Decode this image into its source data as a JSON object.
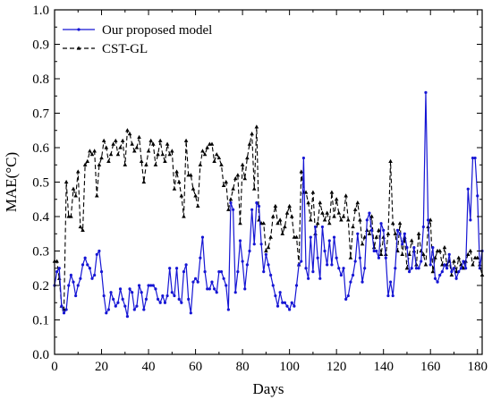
{
  "chart_data": {
    "type": "line",
    "xlabel": "Days",
    "ylabel": "MAE(°C)",
    "xlim": [
      0,
      182
    ],
    "ylim": [
      0.0,
      1.0
    ],
    "xticks": [
      0,
      20,
      40,
      60,
      80,
      100,
      120,
      140,
      160,
      180
    ],
    "yticks": [
      0.0,
      0.1,
      0.2,
      0.3,
      0.4,
      0.5,
      0.6,
      0.7,
      0.8,
      0.9,
      1.0
    ],
    "xtick_labels": [
      "0",
      "20",
      "40",
      "60",
      "80",
      "100",
      "120",
      "140",
      "160",
      "180"
    ],
    "ytick_labels": [
      "0.0",
      "0.1",
      "0.2",
      "0.3",
      "0.4",
      "0.5",
      "0.6",
      "0.7",
      "0.8",
      "0.9",
      "1.0"
    ],
    "grid": false,
    "legend_position": "top-left",
    "series": [
      {
        "name": "Our proposed model",
        "color": "#1515d4",
        "style": "solid",
        "marker": "dot",
        "x": [
          0,
          1,
          2,
          3,
          4,
          5,
          6,
          7,
          8,
          9,
          10,
          11,
          12,
          13,
          14,
          15,
          16,
          17,
          18,
          19,
          20,
          21,
          22,
          23,
          24,
          25,
          26,
          27,
          28,
          29,
          30,
          31,
          32,
          33,
          34,
          35,
          36,
          37,
          38,
          39,
          40,
          41,
          42,
          43,
          44,
          45,
          46,
          47,
          48,
          49,
          50,
          51,
          52,
          53,
          54,
          55,
          56,
          57,
          58,
          59,
          60,
          61,
          62,
          63,
          64,
          65,
          66,
          67,
          68,
          69,
          70,
          71,
          72,
          73,
          74,
          75,
          76,
          77,
          78,
          79,
          80,
          81,
          82,
          83,
          84,
          85,
          86,
          87,
          88,
          89,
          90,
          91,
          92,
          93,
          94,
          95,
          96,
          97,
          98,
          99,
          100,
          101,
          102,
          103,
          104,
          105,
          106,
          107,
          108,
          109,
          110,
          111,
          112,
          113,
          114,
          115,
          116,
          117,
          118,
          119,
          120,
          121,
          122,
          123,
          124,
          125,
          126,
          127,
          128,
          129,
          130,
          131,
          132,
          133,
          134,
          135,
          136,
          137,
          138,
          139,
          140,
          141,
          142,
          143,
          144,
          145,
          146,
          147,
          148,
          149,
          150,
          151,
          152,
          153,
          154,
          155,
          156,
          157,
          158,
          159,
          160,
          161,
          162,
          163,
          164,
          165,
          166,
          167,
          168,
          169,
          170,
          171,
          172,
          173,
          174,
          175,
          176,
          177,
          178,
          179,
          180,
          181,
          182
        ],
        "y": [
          0.2,
          0.24,
          0.25,
          0.14,
          0.12,
          0.13,
          0.2,
          0.23,
          0.21,
          0.17,
          0.2,
          0.22,
          0.26,
          0.28,
          0.26,
          0.25,
          0.22,
          0.23,
          0.29,
          0.3,
          0.24,
          0.17,
          0.12,
          0.13,
          0.18,
          0.16,
          0.14,
          0.15,
          0.19,
          0.16,
          0.14,
          0.11,
          0.19,
          0.18,
          0.13,
          0.14,
          0.2,
          0.18,
          0.13,
          0.16,
          0.2,
          0.2,
          0.2,
          0.19,
          0.16,
          0.15,
          0.17,
          0.15,
          0.17,
          0.25,
          0.18,
          0.17,
          0.25,
          0.16,
          0.15,
          0.24,
          0.26,
          0.16,
          0.12,
          0.21,
          0.22,
          0.21,
          0.28,
          0.34,
          0.24,
          0.19,
          0.19,
          0.21,
          0.19,
          0.18,
          0.24,
          0.24,
          0.22,
          0.2,
          0.13,
          0.44,
          0.42,
          0.18,
          0.24,
          0.33,
          0.27,
          0.19,
          0.26,
          0.3,
          0.42,
          0.32,
          0.44,
          0.43,
          0.32,
          0.24,
          0.29,
          0.26,
          0.23,
          0.2,
          0.17,
          0.14,
          0.18,
          0.15,
          0.15,
          0.14,
          0.13,
          0.15,
          0.14,
          0.2,
          0.26,
          0.27,
          0.57,
          0.25,
          0.22,
          0.34,
          0.24,
          0.37,
          0.28,
          0.22,
          0.37,
          0.3,
          0.26,
          0.33,
          0.26,
          0.34,
          0.28,
          0.25,
          0.23,
          0.25,
          0.16,
          0.17,
          0.21,
          0.23,
          0.27,
          0.35,
          0.28,
          0.21,
          0.25,
          0.39,
          0.41,
          0.36,
          0.3,
          0.3,
          0.28,
          0.38,
          0.36,
          0.28,
          0.17,
          0.21,
          0.17,
          0.25,
          0.36,
          0.35,
          0.32,
          0.35,
          0.31,
          0.24,
          0.25,
          0.31,
          0.25,
          0.25,
          0.27,
          0.37,
          0.76,
          0.39,
          0.26,
          0.31,
          0.22,
          0.21,
          0.23,
          0.24,
          0.26,
          0.25,
          0.29,
          0.24,
          0.25,
          0.22,
          0.24,
          0.25,
          0.27,
          0.25,
          0.48,
          0.39,
          0.57,
          0.57,
          0.46,
          0.25,
          0.3
        ]
      },
      {
        "name": "CST-GL",
        "color": "#000000",
        "style": "dashed",
        "marker": "triangle",
        "x": [
          0,
          1,
          2,
          3,
          4,
          5,
          6,
          7,
          8,
          9,
          10,
          11,
          12,
          13,
          14,
          15,
          16,
          17,
          18,
          19,
          20,
          21,
          22,
          23,
          24,
          25,
          26,
          27,
          28,
          29,
          30,
          31,
          32,
          33,
          34,
          35,
          36,
          37,
          38,
          39,
          40,
          41,
          42,
          43,
          44,
          45,
          46,
          47,
          48,
          49,
          50,
          51,
          52,
          53,
          54,
          55,
          56,
          57,
          58,
          59,
          60,
          61,
          62,
          63,
          64,
          65,
          66,
          67,
          68,
          69,
          70,
          71,
          72,
          73,
          74,
          75,
          76,
          77,
          78,
          79,
          80,
          81,
          82,
          83,
          84,
          85,
          86,
          87,
          88,
          89,
          90,
          91,
          92,
          93,
          94,
          95,
          96,
          97,
          98,
          99,
          100,
          101,
          102,
          103,
          104,
          105,
          106,
          107,
          108,
          109,
          110,
          111,
          112,
          113,
          114,
          115,
          116,
          117,
          118,
          119,
          120,
          121,
          122,
          123,
          124,
          125,
          126,
          127,
          128,
          129,
          130,
          131,
          132,
          133,
          134,
          135,
          136,
          137,
          138,
          139,
          140,
          141,
          142,
          143,
          144,
          145,
          146,
          147,
          148,
          149,
          150,
          151,
          152,
          153,
          154,
          155,
          156,
          157,
          158,
          159,
          160,
          161,
          162,
          163,
          164,
          165,
          166,
          167,
          168,
          169,
          170,
          171,
          172,
          173,
          174,
          175,
          176,
          177,
          178,
          179,
          180,
          181,
          182
        ],
        "y": [
          0.27,
          0.27,
          0.22,
          0.14,
          0.13,
          0.5,
          0.4,
          0.4,
          0.48,
          0.46,
          0.53,
          0.37,
          0.36,
          0.55,
          0.56,
          0.59,
          0.58,
          0.59,
          0.46,
          0.55,
          0.57,
          0.62,
          0.6,
          0.56,
          0.58,
          0.61,
          0.62,
          0.58,
          0.6,
          0.62,
          0.55,
          0.65,
          0.64,
          0.61,
          0.59,
          0.6,
          0.63,
          0.56,
          0.5,
          0.55,
          0.59,
          0.62,
          0.61,
          0.55,
          0.58,
          0.62,
          0.58,
          0.56,
          0.61,
          0.58,
          0.59,
          0.48,
          0.53,
          0.5,
          0.46,
          0.4,
          0.62,
          0.52,
          0.52,
          0.48,
          0.46,
          0.43,
          0.55,
          0.59,
          0.58,
          0.6,
          0.61,
          0.61,
          0.56,
          0.58,
          0.57,
          0.55,
          0.49,
          0.5,
          0.42,
          0.45,
          0.48,
          0.51,
          0.52,
          0.38,
          0.55,
          0.51,
          0.57,
          0.61,
          0.64,
          0.48,
          0.66,
          0.39,
          0.38,
          0.38,
          0.3,
          0.31,
          0.34,
          0.4,
          0.43,
          0.38,
          0.39,
          0.35,
          0.37,
          0.41,
          0.43,
          0.4,
          0.34,
          0.34,
          0.26,
          0.53,
          0.47,
          0.47,
          0.44,
          0.39,
          0.47,
          0.35,
          0.38,
          0.44,
          0.41,
          0.39,
          0.41,
          0.38,
          0.47,
          0.4,
          0.45,
          0.41,
          0.39,
          0.4,
          0.46,
          0.39,
          0.28,
          0.37,
          0.42,
          0.44,
          0.39,
          0.32,
          0.34,
          0.36,
          0.35,
          0.4,
          0.31,
          0.34,
          0.36,
          0.29,
          0.34,
          0.29,
          0.35,
          0.56,
          0.38,
          0.35,
          0.3,
          0.38,
          0.29,
          0.34,
          0.25,
          0.29,
          0.33,
          0.3,
          0.26,
          0.35,
          0.3,
          0.29,
          0.26,
          0.37,
          0.39,
          0.24,
          0.28,
          0.3,
          0.3,
          0.26,
          0.31,
          0.26,
          0.27,
          0.23,
          0.27,
          0.24,
          0.28,
          0.26,
          0.25,
          0.27,
          0.29,
          0.3,
          0.26,
          0.28,
          0.28,
          0.26,
          0.23
        ]
      }
    ]
  }
}
